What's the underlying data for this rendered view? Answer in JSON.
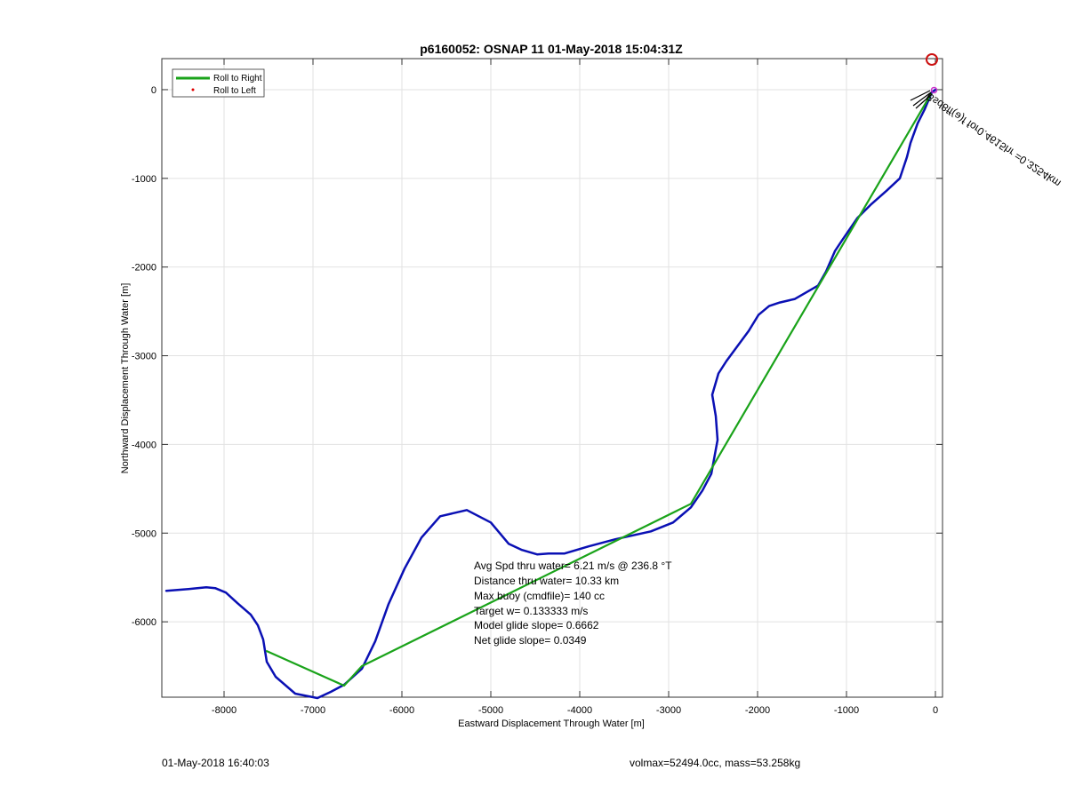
{
  "chart_data": {
    "type": "line",
    "title": "p6160052: OSNAP 11 01-May-2018 15:04:31Z",
    "xlabel": "Eastward Displacement Through Water [m]",
    "ylabel": "Northward Displacement Through Water [m]",
    "xlim": [
      -8700,
      80
    ],
    "ylim": [
      -6850,
      350
    ],
    "xticks": [
      -8000,
      -7000,
      -6000,
      -5000,
      -4000,
      -3000,
      -2000,
      -1000,
      0
    ],
    "yticks": [
      0,
      -1000,
      -2000,
      -3000,
      -4000,
      -5000,
      -6000
    ],
    "grid": true,
    "legend": {
      "placement": "top-left",
      "entries": [
        {
          "label": "Roll to Right",
          "color": "#1aa31a",
          "style": "line"
        },
        {
          "label": "Roll to Left",
          "color": "#e00000",
          "style": "dot"
        }
      ]
    },
    "series": [
      {
        "color": "#0a10b4",
        "points": [
          [
            -8650,
            -5650
          ],
          [
            -8400,
            -5630
          ],
          [
            -8200,
            -5610
          ],
          [
            -8100,
            -5620
          ],
          [
            -7980,
            -5670
          ],
          [
            -7850,
            -5790
          ],
          [
            -7700,
            -5920
          ],
          [
            -7620,
            -6040
          ],
          [
            -7560,
            -6200
          ],
          [
            -7520,
            -6450
          ],
          [
            -7420,
            -6620
          ],
          [
            -7200,
            -6810
          ],
          [
            -6950,
            -6860
          ],
          [
            -6800,
            -6790
          ],
          [
            -6650,
            -6710
          ],
          [
            -6450,
            -6530
          ],
          [
            -6300,
            -6220
          ],
          [
            -6150,
            -5800
          ],
          [
            -5970,
            -5400
          ],
          [
            -5780,
            -5050
          ],
          [
            -5570,
            -4810
          ],
          [
            -5270,
            -4740
          ],
          [
            -5000,
            -4880
          ],
          [
            -4800,
            -5120
          ],
          [
            -4650,
            -5190
          ],
          [
            -4480,
            -5240
          ],
          [
            -4350,
            -5230
          ],
          [
            -4170,
            -5230
          ],
          [
            -3900,
            -5150
          ],
          [
            -3600,
            -5070
          ],
          [
            -3200,
            -4980
          ],
          [
            -2950,
            -4880
          ],
          [
            -2750,
            -4710
          ],
          [
            -2620,
            -4520
          ],
          [
            -2520,
            -4330
          ],
          [
            -2450,
            -3950
          ],
          [
            -2470,
            -3680
          ],
          [
            -2510,
            -3440
          ],
          [
            -2440,
            -3200
          ],
          [
            -2350,
            -3060
          ],
          [
            -2100,
            -2720
          ],
          [
            -1990,
            -2540
          ],
          [
            -1870,
            -2440
          ],
          [
            -1750,
            -2400
          ],
          [
            -1580,
            -2360
          ],
          [
            -1320,
            -2210
          ],
          [
            -1230,
            -2050
          ],
          [
            -1130,
            -1820
          ],
          [
            -1050,
            -1700
          ],
          [
            -880,
            -1450
          ],
          [
            -720,
            -1290
          ],
          [
            -550,
            -1140
          ],
          [
            -400,
            -1000
          ],
          [
            -320,
            -760
          ],
          [
            -280,
            -600
          ],
          [
            -200,
            -380
          ],
          [
            -120,
            -220
          ],
          [
            -40,
            -30
          ],
          [
            0,
            0
          ]
        ]
      },
      {
        "name": "Roll to Right",
        "color": "#1aa31a",
        "points": [
          [
            -7520,
            -6330
          ],
          [
            -6650,
            -6720
          ],
          [
            -6450,
            -6500
          ],
          [
            -2750,
            -4670
          ],
          [
            -50,
            -50
          ]
        ]
      }
    ],
    "markers": [
      {
        "type": "circle",
        "color": "#cc1111",
        "x": -40,
        "y": 340
      },
      {
        "type": "circle",
        "color": "#cc33cc",
        "x": -15,
        "y": -5
      }
    ],
    "annotations": [
      "Avg Spd thru water=  6.21 m/s @ 236.8 °T",
      "Distance thru water= 10.33 km",
      "Max buoy (cmdfile)= 140 cc",
      "Target w= 0.133333 m/s",
      "Model glide slope= 0.6662",
      "Net glide slope= 0.0349"
    ],
    "rotated_label": "Bsd8ff(ə)f for0.4615hr =0.3254km"
  },
  "footer": {
    "left": "01-May-2018 16:40:03",
    "right": "volmax=52494.0cc, mass=53.258kg"
  }
}
